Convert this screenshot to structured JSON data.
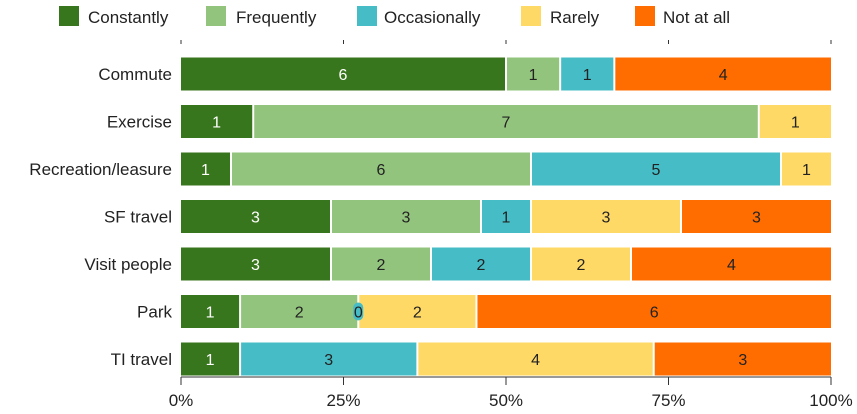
{
  "chart_data": {
    "type": "bar",
    "orientation": "horizontal",
    "stacked": true,
    "normalized": true,
    "title": "",
    "xlabel": "",
    "ylabel": "",
    "xlim": [
      0,
      100
    ],
    "x_ticks": [
      "0%",
      "25%",
      "50%",
      "75%",
      "100%"
    ],
    "legend_position": "top",
    "grid": false,
    "categories": [
      "Commute",
      "Exercise",
      "Recreation/leasure",
      "SF travel",
      "Visit people",
      "Park",
      "TI travel"
    ],
    "series": [
      {
        "name": "Constantly",
        "color": "#38761d",
        "label_color": "#ffffff",
        "values": [
          6,
          1,
          1,
          3,
          3,
          1,
          1
        ]
      },
      {
        "name": "Frequently",
        "color": "#93c47d",
        "label_color": "#222222",
        "values": [
          1,
          7,
          6,
          3,
          2,
          2,
          0
        ]
      },
      {
        "name": "Occasionally",
        "color": "#46bdc6",
        "label_color": "#222222",
        "values": [
          1,
          0,
          5,
          1,
          2,
          0,
          3
        ]
      },
      {
        "name": "Rarely",
        "color": "#ffd966",
        "label_color": "#222222",
        "values": [
          0,
          1,
          1,
          3,
          2,
          2,
          4
        ]
      },
      {
        "name": "Not at all",
        "color": "#ff6d01",
        "label_color": "#222222",
        "values": [
          4,
          0,
          0,
          3,
          4,
          6,
          3
        ]
      }
    ],
    "zero_labels": [
      {
        "category": "Park",
        "series": "Occasionally",
        "text": "0"
      }
    ]
  }
}
